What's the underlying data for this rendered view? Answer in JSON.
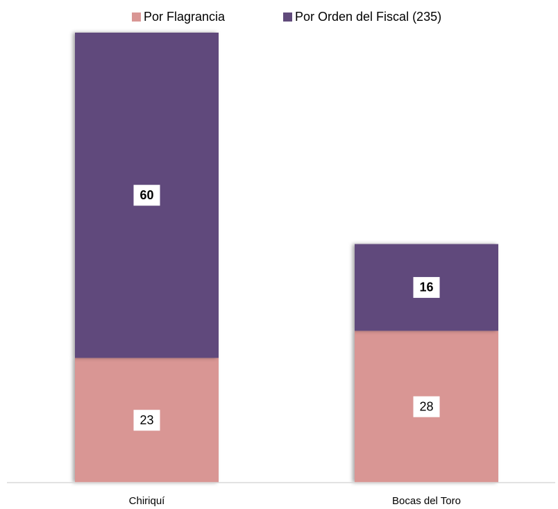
{
  "chart_data": {
    "type": "stacked_bar",
    "categories": [
      "Chiriquí",
      "Bocas del Toro"
    ],
    "series": [
      {
        "name": "Por Flagrancia",
        "color": "#d99694",
        "values": [
          23,
          28
        ]
      },
      {
        "name": "Por Orden del Fiscal (235)",
        "color": "#604a7b",
        "values": [
          60,
          16
        ]
      }
    ],
    "legend": "top"
  }
}
